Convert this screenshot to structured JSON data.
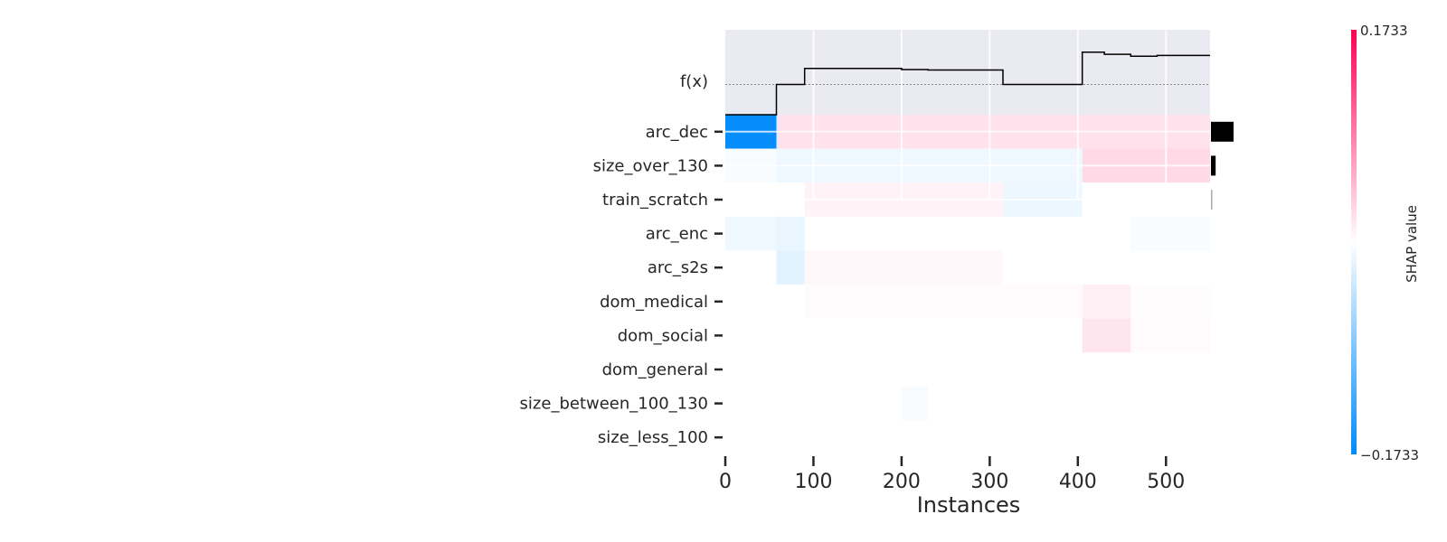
{
  "chart_data": {
    "type": "heatmap",
    "title": "",
    "xlabel": "Instances",
    "ylabel": "",
    "n_instances": 550,
    "xlim": [
      0,
      550
    ],
    "x_ticks": [
      0,
      100,
      200,
      300,
      400,
      500
    ],
    "fx_label": "f(x)",
    "fx_curve": {
      "baseline": 0.0,
      "range": [
        -0.075,
        0.12
      ],
      "points": [
        [
          0,
          -0.075
        ],
        [
          58,
          -0.075
        ],
        [
          58,
          0.0
        ],
        [
          90,
          0.0
        ],
        [
          90,
          0.04
        ],
        [
          200,
          0.04
        ],
        [
          200,
          0.037
        ],
        [
          230,
          0.037
        ],
        [
          230,
          0.036
        ],
        [
          315,
          0.036
        ],
        [
          315,
          0.0
        ],
        [
          405,
          0.0
        ],
        [
          405,
          0.08
        ],
        [
          430,
          0.08
        ],
        [
          430,
          0.075
        ],
        [
          460,
          0.075
        ],
        [
          460,
          0.07
        ],
        [
          490,
          0.07
        ],
        [
          490,
          0.072
        ],
        [
          550,
          0.072
        ]
      ]
    },
    "colorbar": {
      "label": "SHAP value",
      "max": 0.1733,
      "min": -0.1733,
      "max_label": "0.1733",
      "min_label": "−0.1733",
      "pos_color": "#ff0051",
      "neg_color": "#008bfb"
    },
    "features": [
      "arc_dec",
      "size_over_130",
      "train_scratch",
      "arc_enc",
      "arc_s2s",
      "dom_medical",
      "dom_social",
      "dom_general",
      "size_between_100_130",
      "size_less_100"
    ],
    "importance": [
      0.145,
      0.03,
      0.005,
      0,
      0,
      0,
      0,
      0,
      0,
      0
    ],
    "shap_segments": [
      [
        [
          0,
          58,
          -0.17
        ],
        [
          58,
          550,
          0.02
        ]
      ],
      [
        [
          0,
          58,
          -0.005
        ],
        [
          58,
          405,
          -0.01
        ],
        [
          405,
          550,
          0.025
        ]
      ],
      [
        [
          0,
          90,
          0.0
        ],
        [
          90,
          315,
          0.008
        ],
        [
          315,
          405,
          -0.012
        ],
        [
          405,
          550,
          0.0
        ]
      ],
      [
        [
          0,
          58,
          -0.01
        ],
        [
          58,
          90,
          -0.015
        ],
        [
          90,
          460,
          0.0
        ],
        [
          460,
          550,
          -0.005
        ]
      ],
      [
        [
          0,
          58,
          0.0
        ],
        [
          58,
          90,
          -0.02
        ],
        [
          90,
          315,
          0.005
        ],
        [
          315,
          550,
          0.0
        ]
      ],
      [
        [
          0,
          90,
          0.0
        ],
        [
          90,
          405,
          0.003
        ],
        [
          405,
          460,
          0.01
        ],
        [
          460,
          550,
          0.002
        ]
      ],
      [
        [
          0,
          405,
          0.0
        ],
        [
          405,
          460,
          0.018
        ],
        [
          460,
          550,
          0.003
        ]
      ],
      [
        [
          0,
          550,
          0.0
        ]
      ],
      [
        [
          0,
          200,
          0.0
        ],
        [
          200,
          230,
          -0.005
        ],
        [
          230,
          550,
          0.0
        ]
      ],
      [
        [
          0,
          550,
          0.0
        ]
      ]
    ]
  }
}
